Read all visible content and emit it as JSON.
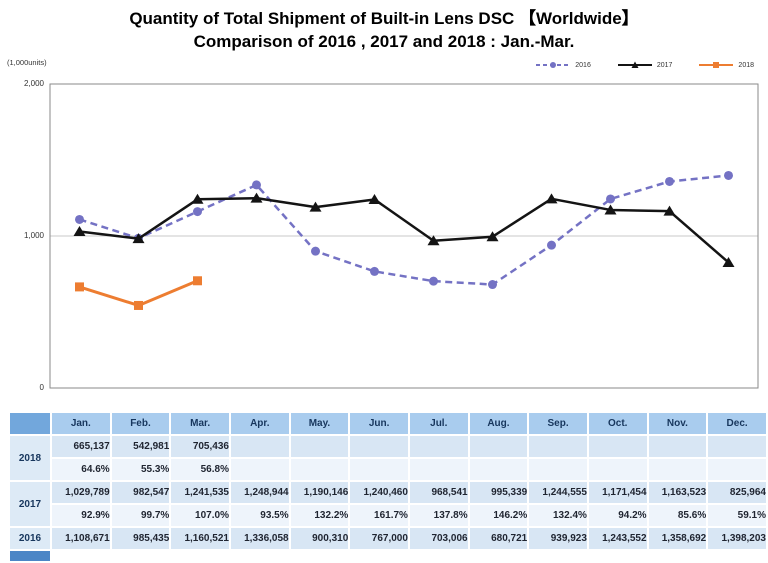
{
  "title": {
    "line1": "Quantity of Total Shipment of Built-in Lens DSC 【Worldwide】",
    "line2": "Comparison of 2016 , 2017 and 2018 : Jan.-Mar."
  },
  "chart": {
    "y_axis_unit": "(1,000units)",
    "y_ticks": [
      "2,000",
      "1,000",
      "0"
    ]
  },
  "chart_data": {
    "type": "line",
    "title": "Quantity of Total Shipment of Built-in Lens DSC (Worldwide), 1,000 units",
    "categories": [
      "Jan.",
      "Feb.",
      "Mar.",
      "Apr.",
      "May.",
      "Jun.",
      "Jul.",
      "Aug.",
      "Sep.",
      "Oct.",
      "Nov.",
      "Dec."
    ],
    "xlabel": "",
    "ylabel": "(1,000units)",
    "ylim": [
      0,
      2000
    ],
    "y_tick_values": [
      0,
      1000,
      2000
    ],
    "grid": "horizontal",
    "legend_position": "top-right",
    "series": [
      {
        "name": "2016",
        "color": "#7472C4",
        "style": "dashed",
        "marker": "circle",
        "values": [
          1108.671,
          985.435,
          1160.521,
          1336.058,
          900.31,
          767.0,
          703.006,
          680.721,
          939.923,
          1243.552,
          1358.692,
          1398.203
        ]
      },
      {
        "name": "2017",
        "color": "#141414",
        "style": "solid",
        "marker": "triangle",
        "values": [
          1029.789,
          982.547,
          1241.535,
          1248.944,
          1190.146,
          1240.46,
          968.541,
          995.339,
          1244.555,
          1171.454,
          1163.523,
          825.964
        ]
      },
      {
        "name": "2018",
        "color": "#ED7D31",
        "style": "solid",
        "marker": "square",
        "values": [
          665.137,
          542.981,
          705.436,
          null,
          null,
          null,
          null,
          null,
          null,
          null,
          null,
          null
        ]
      }
    ]
  },
  "table": {
    "months": [
      "Jan.",
      "Feb.",
      "Mar.",
      "Apr.",
      "May.",
      "Jun.",
      "Jul.",
      "Aug.",
      "Sep.",
      "Oct.",
      "Nov.",
      "Dec."
    ],
    "rows": [
      {
        "year": "2018",
        "values": [
          "665,137",
          "542,981",
          "705,436",
          "",
          "",
          "",
          "",
          "",
          "",
          "",
          "",
          ""
        ],
        "pcts": [
          "64.6%",
          "55.3%",
          "56.8%",
          "",
          "",
          "",
          "",
          "",
          "",
          "",
          "",
          ""
        ]
      },
      {
        "year": "2017",
        "values": [
          "1,029,789",
          "982,547",
          "1,241,535",
          "1,248,944",
          "1,190,146",
          "1,240,460",
          "968,541",
          "995,339",
          "1,244,555",
          "1,171,454",
          "1,163,523",
          "825,964"
        ],
        "pcts": [
          "92.9%",
          "99.7%",
          "107.0%",
          "93.5%",
          "132.2%",
          "161.7%",
          "137.8%",
          "146.2%",
          "132.4%",
          "94.2%",
          "85.6%",
          "59.1%"
        ]
      },
      {
        "year": "2016",
        "values": [
          "1,108,671",
          "985,435",
          "1,160,521",
          "1,336,058",
          "900,310",
          "767,000",
          "703,006",
          "680,721",
          "939,923",
          "1,243,552",
          "1,358,692",
          "1,398,203"
        ],
        "pcts": null
      }
    ]
  }
}
